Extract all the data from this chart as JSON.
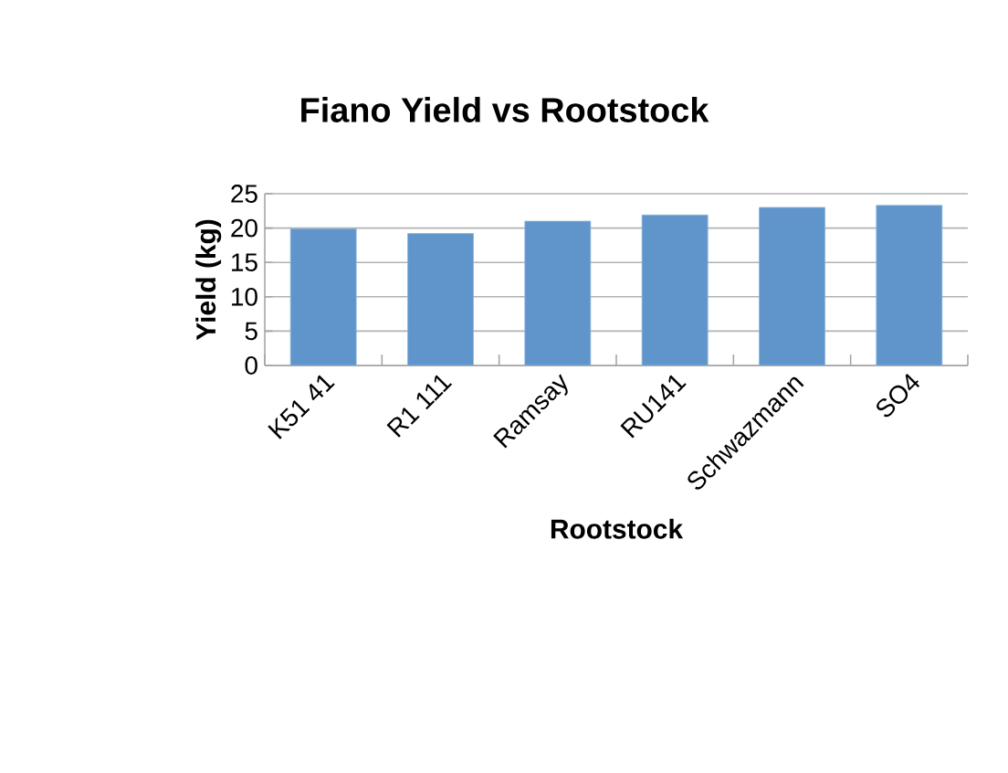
{
  "chart_data": {
    "type": "bar",
    "title": "Fiano Yield vs Rootstock",
    "xlabel": "Rootstock",
    "ylabel": "Yield (kg)",
    "categories": [
      "K51 41",
      "R1 111",
      "Ramsay",
      "RU141",
      "Schwazmann",
      "SO4"
    ],
    "values": [
      19.9,
      19.2,
      21.0,
      21.9,
      23.0,
      23.3
    ],
    "color": "#5f95ca",
    "ylim": [
      0,
      25
    ],
    "yticks": [
      0,
      5,
      10,
      15,
      20,
      25
    ],
    "grid": "y"
  }
}
